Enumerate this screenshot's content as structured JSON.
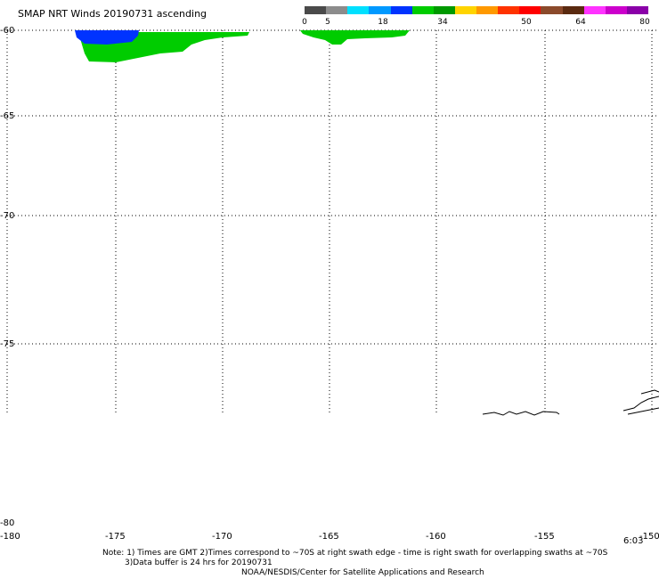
{
  "title": "SMAP NRT Winds 20190731 ascending",
  "colorbar": {
    "labels": [
      "0",
      "5",
      "18",
      "34",
      "50",
      "64",
      "80"
    ],
    "colors": [
      "#4a4a4a",
      "#8c8c8c",
      "#00e0ff",
      "#0099ff",
      "#0033ff",
      "#00cc00",
      "#009900",
      "#ffd400",
      "#ff9900",
      "#ff3300",
      "#ff0000",
      "#8b4a2b",
      "#5a2a10",
      "#ff33ff",
      "#cc00cc",
      "#8a00a8"
    ]
  },
  "map": {
    "lat_ticks": [
      "-60",
      "-65",
      "-70",
      "-75",
      "-80"
    ],
    "lon_ticks": [
      "-180",
      "-175",
      "-170",
      "-165",
      "-160",
      "-155",
      "-150"
    ],
    "time_label": "6:03"
  },
  "notes": {
    "line1": "Note: 1) Times are GMT 2)Times correspond to ~70S at right swath edge - time is right swath for overlapping swaths at ~70S",
    "line2": "3)Data buffer is 24 hrs for 20190731",
    "line3": "NOAA/NESDIS/Center for Satellite Applications and Research"
  }
}
